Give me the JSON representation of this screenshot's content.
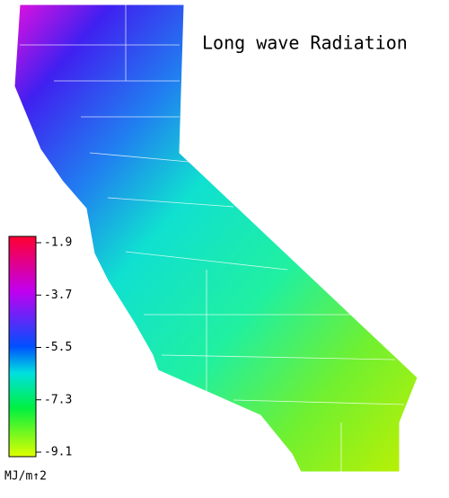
{
  "title": "Long wave Radiation",
  "colorbar": {
    "lim": [
      -9.1,
      -1.9
    ],
    "ticks": [
      -1.9,
      -3.7,
      -5.5,
      -7.3,
      -9.1
    ],
    "unit": "MJ/m↑2"
  }
}
